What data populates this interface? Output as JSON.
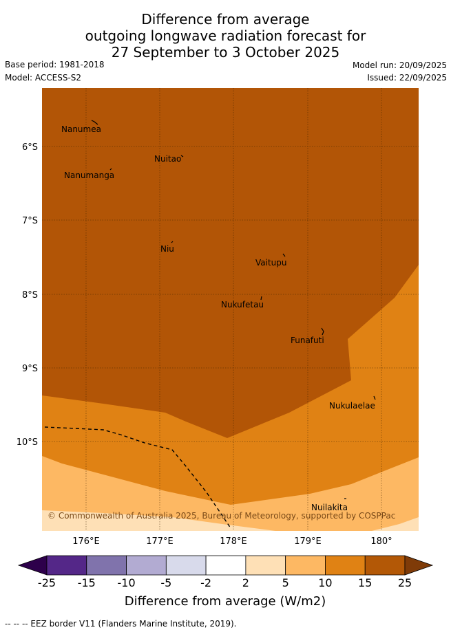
{
  "title": {
    "line1": "Difference from average",
    "line2": "outgoing longwave radiation forecast for",
    "line3": "27 September to 3 October 2025"
  },
  "meta": {
    "base_period": "Base period: 1981-2018",
    "model": "Model: ACCESS-S2",
    "model_run": "Model run: 20/09/2025",
    "issued": "Issued: 22/09/2025"
  },
  "map": {
    "lat_labels": [
      "6°S",
      "7°S",
      "8°S",
      "9°S",
      "10°S"
    ],
    "lon_labels": [
      "176°E",
      "177°E",
      "178°E",
      "179°E",
      "180°"
    ],
    "places": [
      "Nanumea",
      "Nuitao",
      "Nanumanga",
      "Niu",
      "Vaitupu",
      "Nukufetau",
      "Funafuti",
      "Nukulaelae",
      "Nuilakita"
    ],
    "copyright": "© Commonwealth of Australia 2025, Bureau of Meteorology, supported by COSPPac",
    "colors": {
      "c15_25": "#b25506",
      "c10_15": "#e08214",
      "c5_10": "#fdb863",
      "c2_5": "#fee0b6"
    }
  },
  "colorbar": {
    "ticks": [
      "-25",
      "-15",
      "-10",
      "-5",
      "-2",
      "2",
      "5",
      "10",
      "15",
      "25"
    ],
    "title": "Difference from average (W/m2)",
    "colors": [
      "#2d004b",
      "#542788",
      "#8073ac",
      "#b2abd2",
      "#d8daeb",
      "#ffffff",
      "#fee0b6",
      "#fdb863",
      "#e08214",
      "#b35806",
      "#7f3b08"
    ]
  },
  "footer": "--  --  -- EEZ border V11 (Flanders Marine Institute, 2019)."
}
